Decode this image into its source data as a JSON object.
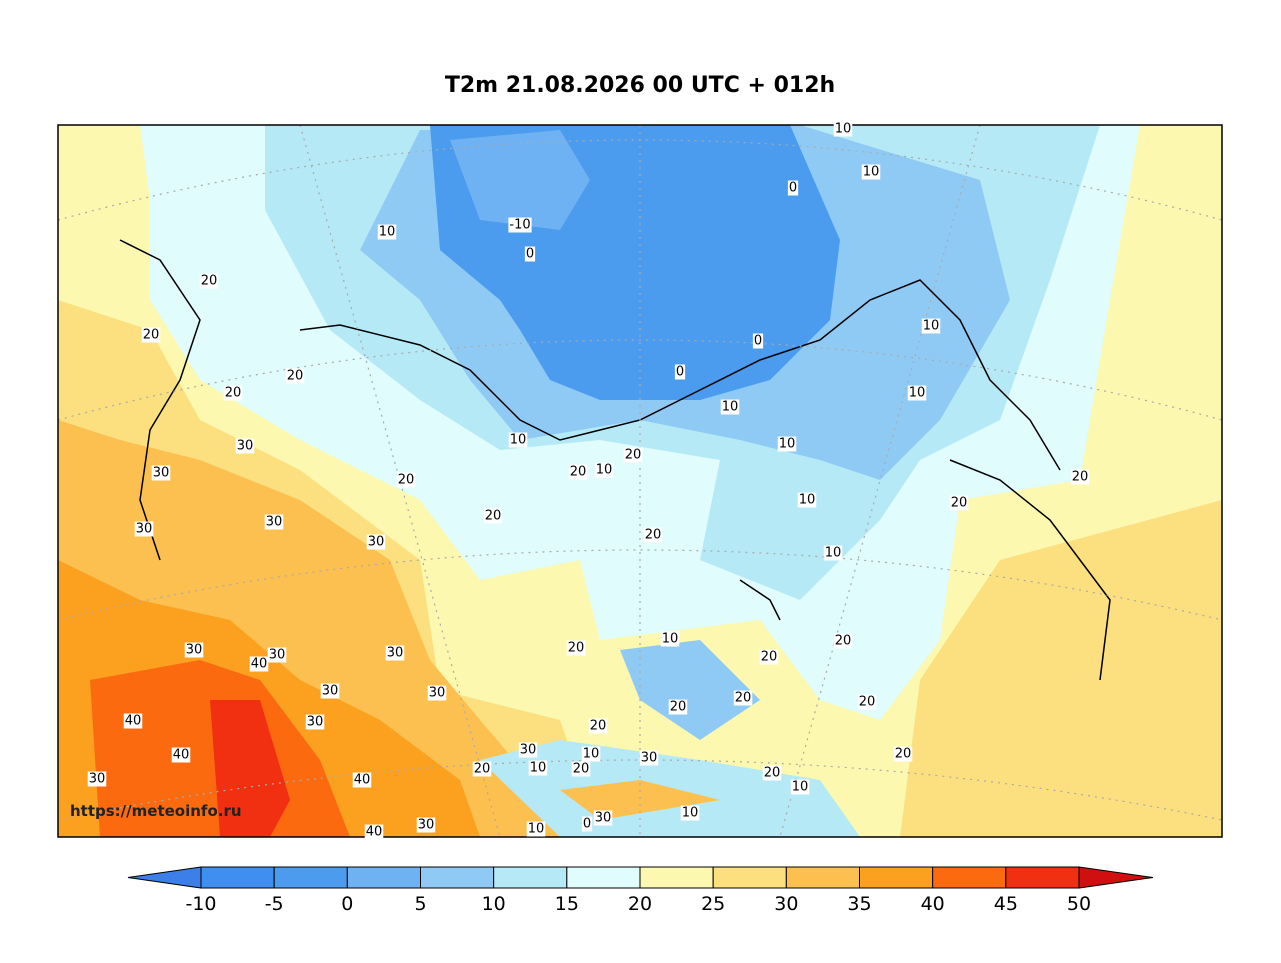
{
  "title": "T2m 21.08.2026 00 UTC + 012h",
  "watermark": "https://meteoinfo.ru",
  "map": {
    "contour_labels": [
      10,
      10,
      0,
      -10,
      0,
      10,
      20,
      20,
      20,
      20,
      30,
      30,
      30,
      30,
      30,
      20,
      20,
      10,
      20,
      10,
      20,
      0,
      0,
      10,
      10,
      10,
      10,
      10,
      10,
      20,
      20,
      20,
      10,
      20,
      20,
      20,
      20,
      20,
      20,
      20,
      20,
      30,
      10,
      30,
      10,
      20,
      20,
      20,
      10,
      10,
      30,
      0,
      10,
      30,
      40,
      40,
      40,
      40,
      30,
      30,
      40,
      30,
      30,
      30,
      30,
      30
    ]
  },
  "colorbar": {
    "ticks": [
      -10,
      -5,
      0,
      5,
      10,
      15,
      20,
      25,
      30,
      35,
      40,
      45,
      50
    ],
    "colors": [
      "#3c7fe8",
      "#3f8ff0",
      "#4b9bee",
      "#6fb2f3",
      "#8fcaf5",
      "#b5e9f5",
      "#e0fcfc",
      "#fcf8b0",
      "#fce080",
      "#fcc050",
      "#fca020",
      "#fc6a10",
      "#f03010",
      "#d01010"
    ]
  }
}
